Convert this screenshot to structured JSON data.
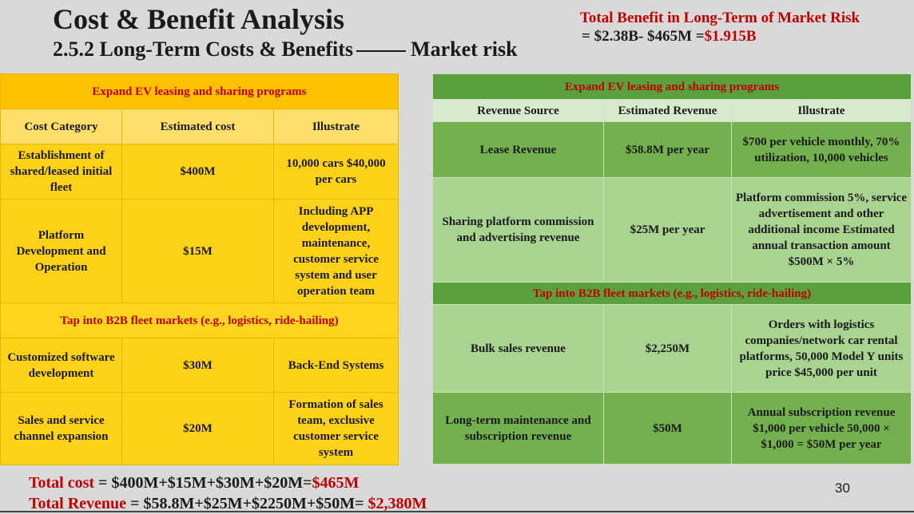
{
  "title": "Cost & Benefit Analysis",
  "subtitle": {
    "left": "2.5.2 Long-Term Costs & Benefits",
    "right": "Market risk"
  },
  "total_benefit": {
    "title": "Total Benefit in Long-Term of Market Risk",
    "formula_prefix": "= $2.38B- $465M =",
    "formula_result": "$1.915B"
  },
  "cost_table": {
    "section1": "Expand EV leasing and sharing programs",
    "headers": [
      "Cost Category",
      "Estimated cost",
      "Illustrate"
    ],
    "rows1": [
      {
        "category": "Establishment of shared/leased initial fleet",
        "cost": "$400M",
        "illustrate": "10,000 cars $40,000 per cars"
      },
      {
        "category": "Platform Development and Operation",
        "cost": "$15M",
        "illustrate": "Including APP development, maintenance, customer service system and user operation team"
      }
    ],
    "section2": "Tap into B2B fleet markets (e.g., logistics, ride-hailing)",
    "rows2": [
      {
        "category": "Customized software development",
        "cost": "$30M",
        "illustrate": "Back-End Systems"
      },
      {
        "category": "Sales and service channel expansion",
        "cost": "$20M",
        "illustrate": "Formation of sales team, exclusive customer service system"
      }
    ]
  },
  "revenue_table": {
    "section1": "Expand EV leasing and sharing programs",
    "headers": [
      "Revenue Source",
      "Estimated Revenue",
      "Illustrate"
    ],
    "rows1": [
      {
        "source": "Lease Revenue",
        "revenue": "$58.8M per year",
        "illustrate": "$700 per vehicle monthly, 70% utilization, 10,000 vehicles"
      },
      {
        "source": "Sharing platform commission and advertising revenue",
        "revenue": "$25M per year",
        "illustrate": "Platform commission 5%, service advertisement and other additional income Estimated annual transaction amount $500M × 5%"
      }
    ],
    "section2": "Tap into B2B fleet markets (e.g., logistics, ride-hailing)",
    "rows2": [
      {
        "source": "Bulk sales revenue",
        "revenue": "$2,250M",
        "illustrate": "Orders with logistics companies/network car rental platforms, 50,000 Model Y units price $45,000 per unit"
      },
      {
        "source": "Long-term maintenance and subscription revenue",
        "revenue": "$50M",
        "illustrate": "Annual subscription revenue $1,000 per vehicle 50,000 × $1,000 = $50M per year"
      }
    ]
  },
  "totals": {
    "cost_label": "Total cost",
    "cost_formula": "= $400M+$15M+$30M+$20M=",
    "cost_result": "$465M",
    "revenue_label": "Total Revenue",
    "revenue_formula": "= $58.8M+$25M+$2250M+$50M=",
    "revenue_result": "$2,380M"
  },
  "page_number": "30"
}
